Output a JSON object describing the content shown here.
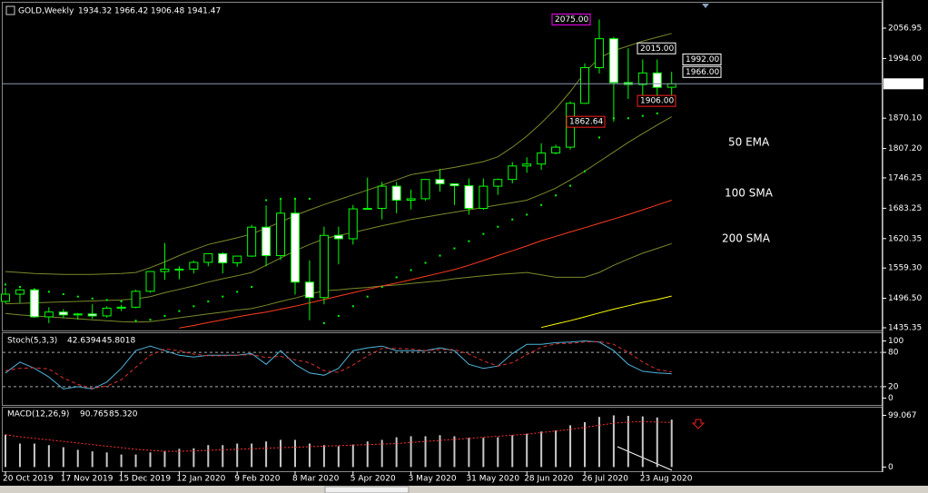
{
  "chart_data": [
    {
      "type": "candlestick",
      "title": "GOLD,Weekly",
      "categories": [
        "20 Oct 2019",
        null,
        null,
        null,
        "17 Nov 2019",
        null,
        null,
        null,
        "15 Dec 2019",
        null,
        null,
        null,
        "12 Jan 2020",
        null,
        null,
        null,
        "9 Feb 2020",
        null,
        null,
        null,
        "8 Mar 2020",
        null,
        null,
        null,
        "5 Apr 2020",
        null,
        null,
        null,
        "3 May 2020",
        null,
        null,
        null,
        "31 May 2020",
        null,
        null,
        null,
        "28 Jun 2020",
        null,
        null,
        null,
        "26 Jul 2020",
        null,
        null,
        null,
        "23 Aug 2020",
        null,
        null
      ],
      "open": [
        1490,
        1505,
        1514,
        1458,
        1468,
        1462,
        1464,
        1460,
        1476,
        1478,
        1511,
        1552,
        1557,
        1557,
        1571,
        1589,
        1570,
        1584,
        1644,
        1585,
        1673,
        1530,
        1498,
        1627,
        1620,
        1682,
        1683,
        1729,
        1700,
        1703,
        1743,
        1734,
        1730,
        1683,
        1729,
        1743,
        1771,
        1775,
        1798,
        1810,
        1901,
        1975,
        2035,
        1944,
        1940,
        1964,
        1934.32
      ],
      "high": [
        1518,
        1516,
        1515,
        1478,
        1474,
        1466,
        1484,
        1480,
        1483,
        1514,
        1553,
        1611,
        1563,
        1575,
        1590,
        1592,
        1585,
        1649,
        1689,
        1703,
        1703,
        1575,
        1645,
        1645,
        1690,
        1747,
        1738,
        1738,
        1722,
        1744,
        1765,
        1735,
        1745,
        1745,
        1745,
        1779,
        1789,
        1818,
        1815,
        1905,
        1984,
        2075,
        2039,
        2015,
        1992,
        1992,
        1966.42
      ],
      "low": [
        1486,
        1487,
        1456,
        1445,
        1455,
        1452,
        1454,
        1456,
        1470,
        1476,
        1508,
        1535,
        1536,
        1548,
        1563,
        1548,
        1562,
        1582,
        1563,
        1576,
        1504,
        1451,
        1484,
        1567,
        1608,
        1680,
        1660,
        1673,
        1681,
        1699,
        1718,
        1690,
        1670,
        1680,
        1711,
        1735,
        1757,
        1763,
        1795,
        1805,
        1900,
        1963,
        1862.64,
        1910,
        1906,
        1916,
        1906.48
      ],
      "close": [
        1505,
        1514,
        1458,
        1468,
        1462,
        1464,
        1460,
        1476,
        1478,
        1511,
        1552,
        1557,
        1557,
        1571,
        1589,
        1570,
        1584,
        1644,
        1585,
        1673,
        1530,
        1498,
        1627,
        1620,
        1682,
        1683,
        1729,
        1700,
        1703,
        1743,
        1734,
        1730,
        1683,
        1729,
        1743,
        1771,
        1775,
        1798,
        1810,
        1901,
        1975,
        2035,
        1944,
        1940,
        1964,
        1934,
        1941.47
      ],
      "bull_color": "#000000",
      "bear_color": "#ffffff",
      "outline_color": "#00ff00",
      "series": [
        {
          "color": "#7a8a2a",
          "values": [
            1552,
            1550,
            1548,
            1547,
            1546,
            1546,
            1546,
            1547,
            1548,
            1550,
            1560,
            1572,
            1585,
            1597,
            1608,
            1615,
            1622,
            1630,
            1642,
            1655,
            1668,
            1680,
            1691,
            1701,
            1711,
            1721,
            1731,
            1742,
            1753,
            1758,
            1763,
            1768,
            1774,
            1780,
            1790,
            1810,
            1833,
            1860,
            1890,
            1925,
            1965,
            1995,
            2010,
            2020,
            2030,
            2038,
            2046
          ]
        },
        {
          "color": "#7a8a2a",
          "values": [
            1485,
            1486,
            1487,
            1488,
            1489,
            1490,
            1491,
            1492,
            1493,
            1495,
            1500,
            1508,
            1515,
            1522,
            1530,
            1537,
            1543,
            1550,
            1565,
            1580,
            1595,
            1608,
            1620,
            1627,
            1633,
            1640,
            1647,
            1653,
            1660,
            1665,
            1670,
            1675,
            1680,
            1685,
            1690,
            1695,
            1700,
            1712,
            1725,
            1742,
            1760,
            1780,
            1800,
            1820,
            1838,
            1856,
            1873
          ]
        },
        {
          "color": "#7a8a2a",
          "values": [
            1465,
            1462,
            1460,
            1458,
            1456,
            1454,
            1452,
            1450,
            1448,
            1447,
            1448,
            1452,
            1456,
            1460,
            1464,
            1468,
            1472,
            1475,
            1482,
            1490,
            1497,
            1505,
            1512,
            1514,
            1517,
            1519,
            1522,
            1524,
            1527,
            1530,
            1533,
            1537,
            1540,
            1543,
            1546,
            1548,
            1550,
            1545,
            1540,
            1540,
            1540,
            1550,
            1565,
            1578,
            1590,
            1600,
            1610
          ]
        },
        {
          "color": "#ff3b1f",
          "values": [
            null,
            null,
            null,
            null,
            null,
            null,
            null,
            null,
            null,
            null,
            null,
            null,
            1435,
            1440,
            1446,
            1452,
            1458,
            1463,
            1468,
            1474,
            1480,
            1487,
            1494,
            1501,
            1508,
            1515,
            1522,
            1528,
            1535,
            1542,
            1549,
            1556,
            1565,
            1575,
            1585,
            1595,
            1605,
            1616,
            1625,
            1634,
            1643,
            1652,
            1661,
            1670,
            1680,
            1690,
            1700
          ]
        },
        {
          "color": "#ffff00",
          "values": [
            null,
            null,
            null,
            null,
            null,
            null,
            null,
            null,
            null,
            null,
            null,
            null,
            null,
            null,
            null,
            null,
            null,
            null,
            null,
            null,
            null,
            null,
            null,
            null,
            null,
            null,
            null,
            null,
            null,
            null,
            null,
            null,
            null,
            null,
            null,
            null,
            null,
            1436,
            1443,
            1450,
            1458,
            1466,
            1474,
            1481,
            1488,
            1494,
            1501
          ]
        }
      ],
      "sar": {
        "color": "#00ff00",
        "values": [
          1525,
          1520,
          1515,
          1510,
          1505,
          1500,
          1496,
          1493,
          1490,
          1450,
          1452,
          1460,
          1470,
          1480,
          1490,
          1500,
          1510,
          1520,
          1700,
          1703,
          1703,
          1703,
          1445,
          1460,
          1480,
          1500,
          1520,
          1540,
          1555,
          1570,
          1585,
          1600,
          1615,
          1630,
          1645,
          1660,
          1670,
          1690,
          1710,
          1730,
          1760,
          1830,
          1870,
          1870,
          1875,
          1880,
          1900
        ]
      },
      "price_labels": [
        {
          "value": 2075,
          "label": "2075.00",
          "color": "#ff00ff"
        },
        {
          "value": 2015,
          "label": "2015.00",
          "color": "#ffffff"
        },
        {
          "value": 1992,
          "label": "1992.00",
          "color": "#ffffff"
        },
        {
          "value": 1966,
          "label": "1966.00",
          "color": "#ffffff"
        },
        {
          "value": 1906,
          "label": "1906.00",
          "color": "#ff2020"
        },
        {
          "value": 1862.64,
          "label": "1862.64",
          "color": "#ff2020"
        }
      ],
      "labels": [
        {
          "text": "50 EMA",
          "color": "#d2691e"
        },
        {
          "text": "100 SMA",
          "color": "#ffff00"
        },
        {
          "text": "200 SMA",
          "color": "#ffffff"
        }
      ],
      "ylim": [
        1429.7,
        2105.9
      ],
      "yticks": [
        2056.95,
        {
          "value": 1994,
          "label": "1994.00"
        },
        {
          "value": 1870.1,
          "label": "1870.10"
        },
        {
          "value": 1807.2,
          "label": "1807.20"
        },
        1746.25,
        1683.25,
        1620.35,
        {
          "value": 1559.3,
          "label": "1559.30"
        },
        {
          "value": 1496.5,
          "label": "1496.50"
        },
        1435.35
      ]
    },
    {
      "type": "line",
      "title": "Stoch(5,3,3)",
      "series": [
        {
          "color": "#4fb3d9",
          "style": "solid",
          "values": [
            44,
            63,
            52,
            37,
            16,
            20,
            16,
            28,
            52,
            83,
            91,
            83,
            75,
            72,
            75,
            75,
            75,
            78,
            59,
            83,
            59,
            44,
            40,
            52,
            83,
            88,
            91,
            83,
            83,
            83,
            88,
            83,
            59,
            52,
            56,
            78,
            94,
            94,
            97,
            98,
            100,
            98,
            83,
            59,
            47,
            44,
            42.6394
          ]
        },
        {
          "color": "#e03030",
          "style": "dashed",
          "values": [
            48,
            52,
            53,
            51,
            35,
            24,
            17,
            21,
            32,
            54,
            75,
            86,
            83,
            77,
            74,
            74,
            75,
            76,
            71,
            73,
            67,
            62,
            48,
            45,
            58,
            74,
            87,
            87,
            86,
            83,
            85,
            85,
            77,
            65,
            56,
            62,
            76,
            89,
            95,
            96,
            98,
            99,
            94,
            80,
            63,
            50,
            45.8018
          ]
        }
      ],
      "ylim": [
        -12,
        112
      ],
      "yticks": [
        0,
        20,
        80,
        100
      ]
    },
    {
      "type": "bar",
      "title": "MACD(12,26,9)",
      "color": "#c8c8c8",
      "values": [
        62,
        45,
        45,
        42,
        38,
        33,
        30,
        28,
        24,
        24,
        28,
        31,
        35,
        36,
        42,
        42,
        45,
        45,
        49,
        52,
        52,
        45,
        42,
        40,
        43,
        49,
        52,
        57,
        59,
        59,
        61,
        59,
        56,
        56,
        57,
        61,
        64,
        68,
        70,
        80,
        86,
        96,
        99,
        98,
        97,
        95,
        90.765
      ],
      "series": [
        {
          "color": "#ff3030",
          "style": "dotted",
          "values": [
            62,
            58,
            55,
            52,
            49,
            46,
            43,
            40,
            37,
            34,
            32,
            30,
            30,
            31,
            32,
            33,
            34,
            35,
            36,
            37,
            38,
            39,
            40,
            41,
            42,
            43,
            44,
            45,
            47,
            49,
            51,
            53,
            55,
            57,
            59,
            61,
            63,
            66,
            69,
            72,
            76,
            80,
            84,
            86,
            87,
            86,
            85.32
          ],
          "value_labels": [
            null,
            null,
            null,
            null,
            null,
            null,
            null,
            null,
            null,
            null,
            null,
            null,
            null,
            null,
            null,
            null,
            null,
            null,
            null,
            null,
            null,
            null,
            null,
            null,
            null,
            null,
            null,
            null,
            null,
            null,
            null,
            null,
            null,
            null,
            null,
            null,
            null,
            null,
            null,
            null,
            null,
            null,
            null,
            null,
            null,
            null,
            "85.320"
          ]
        }
      ],
      "ylim": [
        -8,
        112
      ],
      "yticks": [
        0,
        99.067
      ]
    }
  ]
}
